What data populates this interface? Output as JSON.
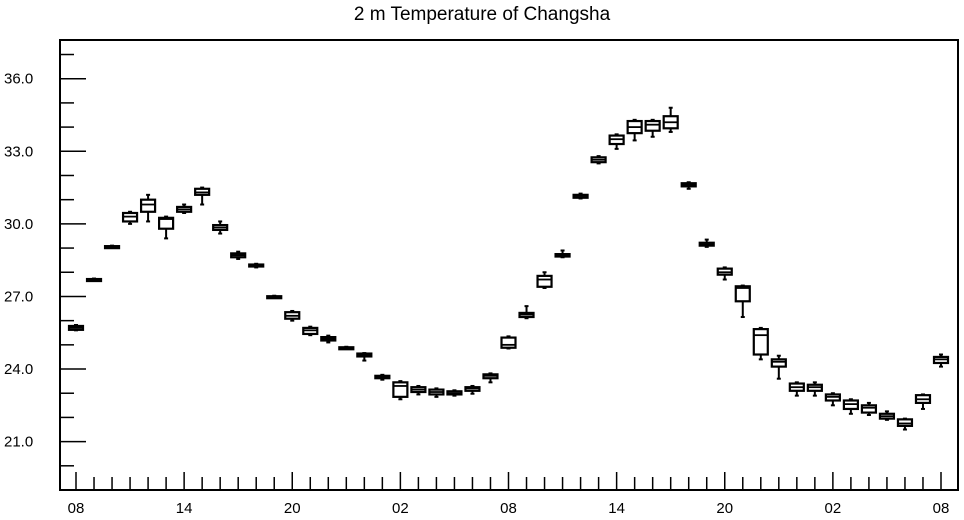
{
  "chart_data": {
    "type": "box",
    "title": "2 m Temperature of Changsha",
    "xlabel": "",
    "ylabel": "",
    "ylim": [
      19.0,
      37.6
    ],
    "yticks": [
      21.0,
      24.0,
      27.0,
      30.0,
      33.0,
      36.0
    ],
    "ytick_labels": [
      "21.0",
      "24.0",
      "27.0",
      "30.0",
      "33.0",
      "36.0"
    ],
    "x_hours": [
      0,
      48
    ],
    "xticks": [
      0,
      6,
      12,
      18,
      24,
      30,
      36,
      42,
      48
    ],
    "xtick_labels": [
      "08",
      "14",
      "20",
      "02",
      "08",
      "14",
      "20",
      "02",
      "08"
    ],
    "boxes": [
      {
        "hour": 0,
        "min": 25.6,
        "q1": 25.62,
        "median": 25.7,
        "q3": 25.78,
        "max": 25.82
      },
      {
        "hour": 1,
        "min": 27.66,
        "q1": 27.68,
        "median": 27.7,
        "q3": 27.72,
        "max": 27.74
      },
      {
        "hour": 2,
        "min": 29.02,
        "q1": 29.04,
        "median": 29.06,
        "q3": 29.08,
        "max": 29.1
      },
      {
        "hour": 3,
        "min": 30.0,
        "q1": 30.1,
        "median": 30.3,
        "q3": 30.45,
        "max": 30.5
      },
      {
        "hour": 4,
        "min": 30.1,
        "q1": 30.5,
        "median": 30.8,
        "q3": 31.0,
        "max": 31.2
      },
      {
        "hour": 5,
        "min": 29.4,
        "q1": 29.8,
        "median": 30.2,
        "q3": 30.25,
        "max": 30.3
      },
      {
        "hour": 6,
        "min": 30.45,
        "q1": 30.5,
        "median": 30.6,
        "q3": 30.7,
        "max": 30.8
      },
      {
        "hour": 7,
        "min": 30.8,
        "q1": 31.2,
        "median": 31.3,
        "q3": 31.45,
        "max": 31.5
      },
      {
        "hour": 8,
        "min": 29.6,
        "q1": 29.75,
        "median": 29.85,
        "q3": 29.95,
        "max": 30.1
      },
      {
        "hour": 9,
        "min": 28.55,
        "q1": 28.62,
        "median": 28.7,
        "q3": 28.78,
        "max": 28.85
      },
      {
        "hour": 10,
        "min": 28.2,
        "q1": 28.24,
        "median": 28.28,
        "q3": 28.32,
        "max": 28.35
      },
      {
        "hour": 11,
        "min": 26.95,
        "q1": 26.97,
        "median": 26.99,
        "q3": 27.01,
        "max": 27.03
      },
      {
        "hour": 12,
        "min": 26.0,
        "q1": 26.08,
        "median": 26.2,
        "q3": 26.35,
        "max": 26.4
      },
      {
        "hour": 13,
        "min": 25.4,
        "q1": 25.45,
        "median": 25.6,
        "q3": 25.7,
        "max": 25.75
      },
      {
        "hour": 14,
        "min": 25.1,
        "q1": 25.18,
        "median": 25.25,
        "q3": 25.32,
        "max": 25.38
      },
      {
        "hour": 15,
        "min": 24.84,
        "q1": 24.86,
        "median": 24.88,
        "q3": 24.9,
        "max": 24.92
      },
      {
        "hour": 16,
        "min": 24.35,
        "q1": 24.52,
        "median": 24.58,
        "q3": 24.64,
        "max": 24.66
      },
      {
        "hour": 17,
        "min": 23.56,
        "q1": 23.62,
        "median": 23.68,
        "q3": 23.72,
        "max": 23.76
      },
      {
        "hour": 18,
        "min": 22.75,
        "q1": 22.85,
        "median": 23.3,
        "q3": 23.45,
        "max": 23.5
      },
      {
        "hour": 19,
        "min": 22.95,
        "q1": 23.05,
        "median": 23.15,
        "q3": 23.25,
        "max": 23.3
      },
      {
        "hour": 20,
        "min": 22.85,
        "q1": 22.95,
        "median": 23.05,
        "q3": 23.15,
        "max": 23.2
      },
      {
        "hour": 21,
        "min": 22.9,
        "q1": 22.95,
        "median": 23.0,
        "q3": 23.08,
        "max": 23.12
      },
      {
        "hour": 22,
        "min": 22.98,
        "q1": 23.1,
        "median": 23.2,
        "q3": 23.25,
        "max": 23.3
      },
      {
        "hour": 23,
        "min": 23.45,
        "q1": 23.62,
        "median": 23.72,
        "q3": 23.78,
        "max": 23.82
      },
      {
        "hour": 24,
        "min": 24.85,
        "q1": 24.88,
        "median": 25.0,
        "q3": 25.3,
        "max": 25.35
      },
      {
        "hour": 25,
        "min": 26.1,
        "q1": 26.15,
        "median": 26.25,
        "q3": 26.32,
        "max": 26.6
      },
      {
        "hour": 26,
        "min": 27.35,
        "q1": 27.4,
        "median": 27.7,
        "q3": 27.85,
        "max": 28.0
      },
      {
        "hour": 27,
        "min": 28.62,
        "q1": 28.65,
        "median": 28.7,
        "q3": 28.75,
        "max": 28.9
      },
      {
        "hour": 28,
        "min": 31.05,
        "q1": 31.08,
        "median": 31.15,
        "q3": 31.2,
        "max": 31.25
      },
      {
        "hour": 29,
        "min": 32.5,
        "q1": 32.55,
        "median": 32.65,
        "q3": 32.75,
        "max": 32.8
      },
      {
        "hour": 30,
        "min": 33.1,
        "q1": 33.3,
        "median": 33.5,
        "q3": 33.65,
        "max": 33.7
      },
      {
        "hour": 31,
        "min": 33.45,
        "q1": 33.75,
        "median": 34.0,
        "q3": 34.25,
        "max": 34.3
      },
      {
        "hour": 32,
        "min": 33.6,
        "q1": 33.85,
        "median": 34.1,
        "q3": 34.25,
        "max": 34.3
      },
      {
        "hour": 33,
        "min": 33.8,
        "q1": 33.95,
        "median": 34.2,
        "q3": 34.45,
        "max": 34.8
      },
      {
        "hour": 34,
        "min": 31.45,
        "q1": 31.55,
        "median": 31.62,
        "q3": 31.68,
        "max": 31.72
      },
      {
        "hour": 35,
        "min": 29.05,
        "q1": 29.1,
        "median": 29.15,
        "q3": 29.22,
        "max": 29.35
      },
      {
        "hour": 36,
        "min": 27.7,
        "q1": 27.9,
        "median": 28.0,
        "q3": 28.15,
        "max": 28.2
      },
      {
        "hour": 37,
        "min": 26.15,
        "q1": 26.8,
        "median": 27.35,
        "q3": 27.42,
        "max": 27.45
      },
      {
        "hour": 38,
        "min": 24.4,
        "q1": 24.6,
        "median": 25.4,
        "q3": 25.65,
        "max": 25.7
      },
      {
        "hour": 39,
        "min": 23.6,
        "q1": 24.1,
        "median": 24.3,
        "q3": 24.4,
        "max": 24.55
      },
      {
        "hour": 40,
        "min": 22.9,
        "q1": 23.1,
        "median": 23.25,
        "q3": 23.4,
        "max": 23.45
      },
      {
        "hour": 41,
        "min": 22.9,
        "q1": 23.1,
        "median": 23.25,
        "q3": 23.35,
        "max": 23.45
      },
      {
        "hour": 42,
        "min": 22.5,
        "q1": 22.7,
        "median": 22.85,
        "q3": 22.95,
        "max": 23.0
      },
      {
        "hour": 43,
        "min": 22.15,
        "q1": 22.35,
        "median": 22.55,
        "q3": 22.7,
        "max": 22.75
      },
      {
        "hour": 44,
        "min": 22.1,
        "q1": 22.2,
        "median": 22.4,
        "q3": 22.5,
        "max": 22.6
      },
      {
        "hour": 45,
        "min": 21.9,
        "q1": 21.95,
        "median": 22.05,
        "q3": 22.15,
        "max": 22.25
      },
      {
        "hour": 46,
        "min": 21.5,
        "q1": 21.65,
        "median": 21.75,
        "q3": 21.92,
        "max": 21.95
      },
      {
        "hour": 47,
        "min": 22.35,
        "q1": 22.6,
        "median": 22.75,
        "q3": 22.92,
        "max": 22.95
      },
      {
        "hour": 48,
        "min": 24.1,
        "q1": 24.25,
        "median": 24.4,
        "q3": 24.5,
        "max": 24.6
      }
    ]
  }
}
